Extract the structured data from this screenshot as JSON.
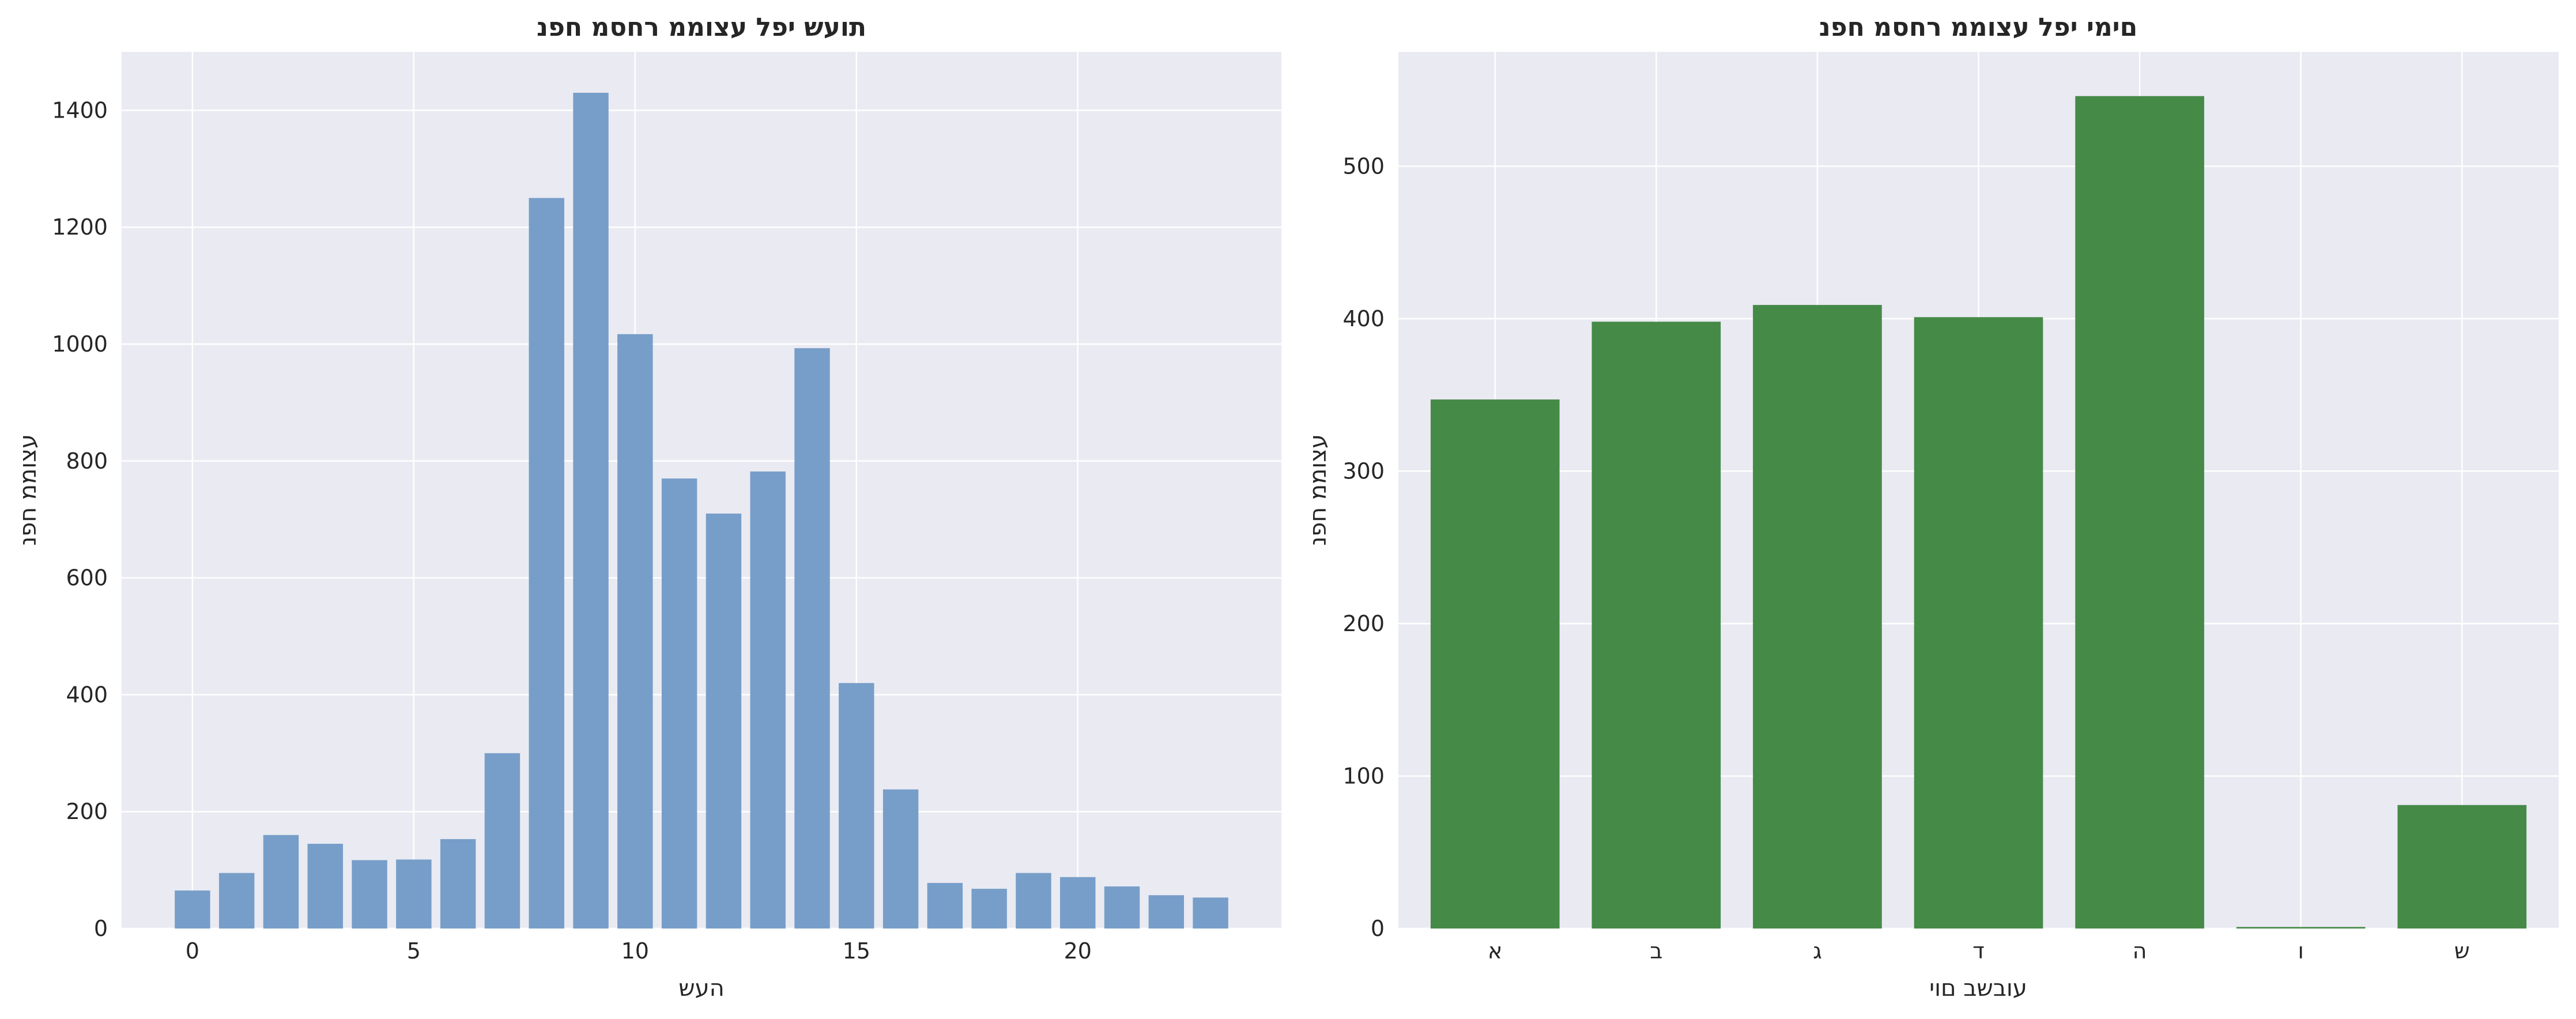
{
  "chart_data": [
    {
      "type": "bar",
      "title": "תועש יפל עצוממ רחסמ חפנ",
      "xlabel": "העש",
      "ylabel": "עצוממ חפנ",
      "color": "#779ec9",
      "grid": true,
      "x": [
        0,
        1,
        2,
        3,
        4,
        5,
        6,
        7,
        8,
        9,
        10,
        11,
        12,
        13,
        14,
        15,
        16,
        17,
        18,
        19,
        20,
        21,
        22,
        23
      ],
      "values": [
        65,
        95,
        160,
        145,
        117,
        118,
        153,
        300,
        1250,
        1430,
        1017,
        770,
        710,
        782,
        993,
        420,
        238,
        78,
        68,
        95,
        88,
        72,
        57,
        53
      ],
      "xlim": [
        -1.6,
        24.6
      ],
      "ylim": [
        0,
        1500
      ],
      "xticks": [
        0,
        5,
        10,
        15,
        20
      ],
      "yticks": [
        0,
        200,
        400,
        600,
        800,
        1000,
        1200,
        1400
      ]
    },
    {
      "type": "bar",
      "title": "םימי יפל עצוממ רחסמ חפנ",
      "xlabel": "עובשב םוי",
      "ylabel": "עצוממ חפנ",
      "color": "#468a48",
      "grid": true,
      "categories": [
        "א",
        "ב",
        "ג",
        "ד",
        "ה",
        "ו",
        "ש"
      ],
      "values": [
        347,
        398,
        409,
        401,
        546,
        1,
        81
      ],
      "ylim": [
        0,
        575
      ],
      "yticks": [
        0,
        100,
        200,
        300,
        400,
        500
      ]
    }
  ]
}
